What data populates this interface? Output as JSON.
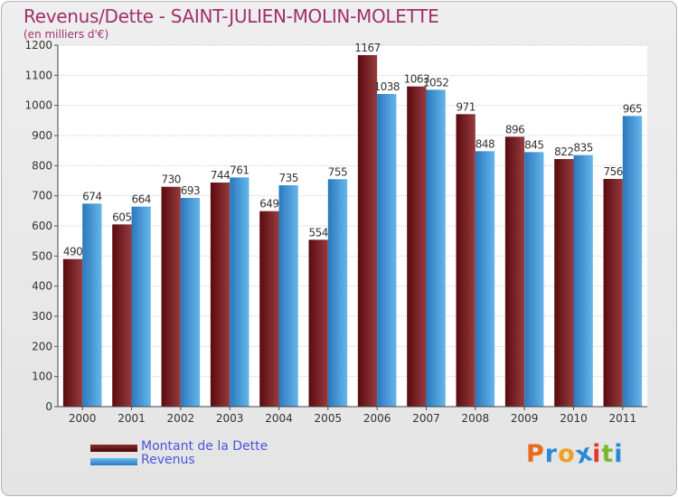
{
  "chart_data": {
    "type": "bar",
    "title": "Revenus/Dette - SAINT-JULIEN-MOLIN-MOLETTE",
    "subtitle": "(en milliers d'€)",
    "categories": [
      "2000",
      "2001",
      "2002",
      "2003",
      "2004",
      "2005",
      "2006",
      "2007",
      "2008",
      "2009",
      "2010",
      "2011"
    ],
    "series": [
      {
        "name": "Montant de la Dette",
        "values": [
          490,
          605,
          730,
          744,
          649,
          554,
          1167,
          1063,
          971,
          896,
          822,
          756
        ],
        "colors": {
          "dark": "#5a0a0e",
          "light": "#963c40"
        }
      },
      {
        "name": "Revenus",
        "values": [
          674,
          664,
          693,
          761,
          735,
          755,
          1038,
          1052,
          848,
          845,
          835,
          965
        ],
        "colors": {
          "dark": "#2a78bc",
          "light": "#66b6ec"
        }
      }
    ],
    "ylim": [
      0,
      1200
    ],
    "yticks": [
      0,
      100,
      200,
      300,
      400,
      500,
      600,
      700,
      800,
      900,
      1000,
      1100,
      1200
    ],
    "grid": true,
    "xlabel": "",
    "ylabel": "",
    "legend": "bottom-left"
  },
  "legend": {
    "items": [
      {
        "label": "Montant de la Dette",
        "color": "#6a1418"
      },
      {
        "label": "Revenus",
        "color": "#4aa0e4"
      }
    ]
  },
  "logo": {
    "letters": [
      "P",
      "r",
      "o",
      "x",
      "i",
      "t",
      "i"
    ],
    "colors": [
      "#e86a1a",
      "#2a8ad8",
      "#f0a020",
      "#2a8ad8",
      "#e23a2a",
      "#7ab830",
      "#2a8ad8"
    ]
  }
}
